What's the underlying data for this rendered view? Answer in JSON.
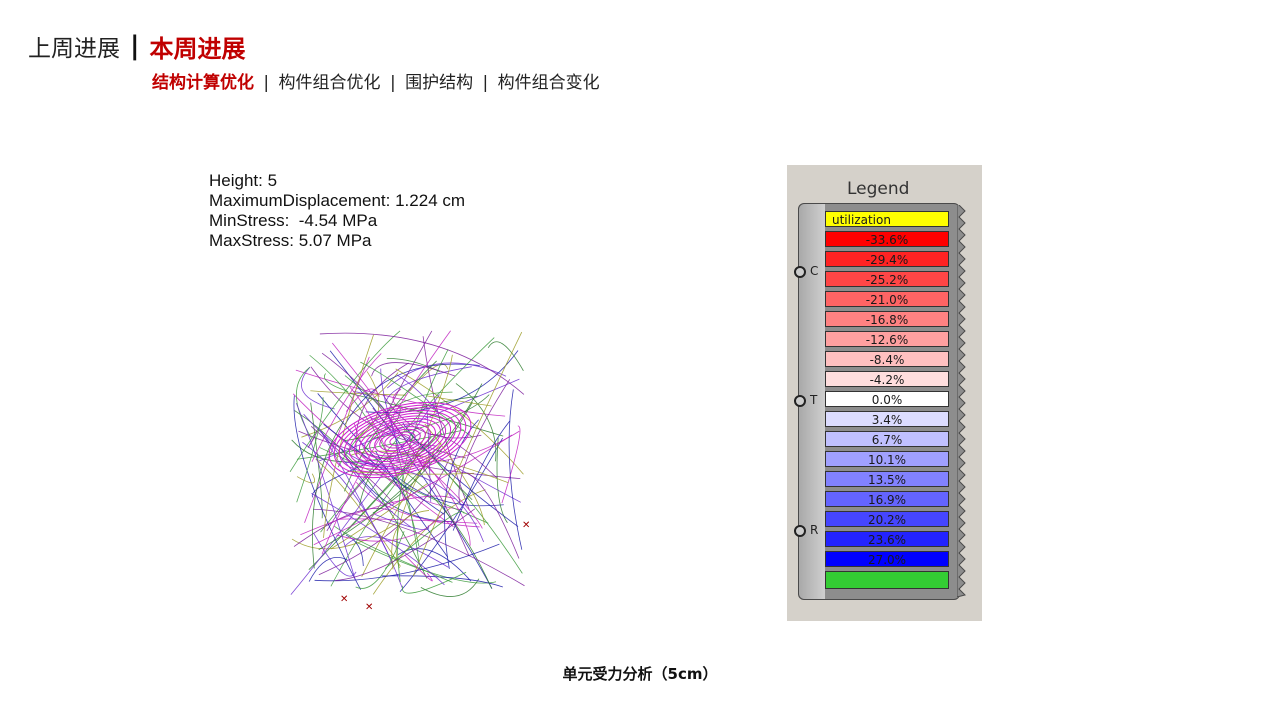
{
  "header": {
    "previous": "上周进展",
    "separator": "|",
    "current": "本周进展"
  },
  "subnav": {
    "items": [
      {
        "label": "结构计算优化",
        "active": true
      },
      {
        "label": "构件组合优化",
        "active": false
      },
      {
        "label": "围护结构",
        "active": false
      },
      {
        "label": "构件组合变化",
        "active": false
      }
    ],
    "separator": "|"
  },
  "stats": {
    "height": "Height: 5",
    "max_displacement": "MaximumDisplacement: 1.224 cm",
    "min_stress": "MinStress:  -4.54 MPa",
    "max_stress": "MaxStress: 5.07 MPa"
  },
  "legend": {
    "title": "Legend",
    "ports": [
      "C",
      "T",
      "R"
    ],
    "header_label": "utilization",
    "entries": [
      {
        "label": "-33.6%",
        "color": "#ff0000"
      },
      {
        "label": "-29.4%",
        "color": "#ff2323"
      },
      {
        "label": "-25.2%",
        "color": "#ff4646"
      },
      {
        "label": "-21.0%",
        "color": "#ff6464"
      },
      {
        "label": "-16.8%",
        "color": "#ff8282"
      },
      {
        "label": "-12.6%",
        "color": "#ffa0a0"
      },
      {
        "label": "-8.4%",
        "color": "#ffc0c0"
      },
      {
        "label": "-4.2%",
        "color": "#ffdede"
      },
      {
        "label": "0.0%",
        "color": "#ffffff"
      },
      {
        "label": "3.4%",
        "color": "#dcdcff"
      },
      {
        "label": "6.7%",
        "color": "#c0c0ff"
      },
      {
        "label": "10.1%",
        "color": "#a0a0ff"
      },
      {
        "label": "13.5%",
        "color": "#8282ff"
      },
      {
        "label": "16.9%",
        "color": "#6464ff"
      },
      {
        "label": "20.2%",
        "color": "#4646ff"
      },
      {
        "label": "23.6%",
        "color": "#2323ff"
      },
      {
        "label": "27.0%",
        "color": "#0000ff"
      },
      {
        "label": "",
        "color": "#33cc33"
      }
    ]
  },
  "caption": "单元受力分析（5cm）",
  "colors": {
    "accent": "#c00000"
  }
}
